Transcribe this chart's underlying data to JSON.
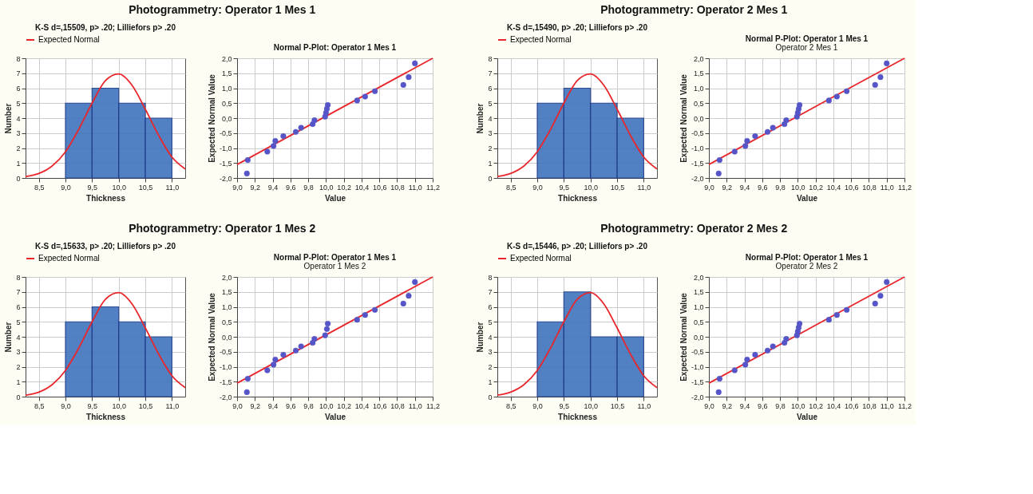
{
  "chart_data": [
    {
      "type": "histogram",
      "title": "Photogrammetry: Operator 1 Mes 1",
      "subtitle": "K-S d=,15509, p> .20; Lilliefors p> .20",
      "xlabel": "Thickness",
      "ylabel": "Number",
      "legend": "top",
      "grid": true,
      "xlim": [
        8.25,
        11.25
      ],
      "xticks": [
        {
          "value": 8.5,
          "label": "8,5"
        },
        {
          "value": 9.0,
          "label": "9,0"
        },
        {
          "value": 9.5,
          "label": "9,5"
        },
        {
          "value": 10.0,
          "label": "10,0"
        },
        {
          "value": 10.5,
          "label": "10,5"
        },
        {
          "value": 11.0,
          "label": "11,0"
        }
      ],
      "ylim": [
        0,
        8
      ],
      "yticks": [
        0,
        1,
        2,
        3,
        4,
        5,
        6,
        7,
        8
      ],
      "series": [
        {
          "type": "histogram",
          "color": "#3f74bd",
          "bins": [
            9.0,
            9.5,
            10.0,
            10.5,
            11.0
          ],
          "values": [
            5,
            6,
            5,
            4
          ]
        },
        {
          "type": "line",
          "name": "Expected Normal",
          "color": "#e8262b",
          "x": [
            8.25,
            8.5,
            8.75,
            9.0,
            9.25,
            9.5,
            9.75,
            10.0,
            10.25,
            10.5,
            10.75,
            11.0,
            11.25
          ],
          "values": [
            0.1,
            0.3,
            0.8,
            1.75,
            3.25,
            5.0,
            6.5,
            6.95,
            6.2,
            4.6,
            2.85,
            1.4,
            0.6
          ]
        }
      ]
    },
    {
      "type": "scatter",
      "title": "Normal P-Plot: Operator 1 Mes 1",
      "xlabel": "Value",
      "ylabel": "Expected Normal Value",
      "grid": true,
      "xlim": [
        9.0,
        11.2
      ],
      "xticks": [
        {
          "value": 9.0,
          "label": "9,0"
        },
        {
          "value": 9.2,
          "label": "9,2"
        },
        {
          "value": 9.4,
          "label": "9,4"
        },
        {
          "value": 9.6,
          "label": "9,6"
        },
        {
          "value": 9.8,
          "label": "9,8"
        },
        {
          "value": 10.0,
          "label": "10,0"
        },
        {
          "value": 10.2,
          "label": "10,2"
        },
        {
          "value": 10.4,
          "label": "10,4"
        },
        {
          "value": 10.6,
          "label": "10,6"
        },
        {
          "value": 10.8,
          "label": "10,8"
        },
        {
          "value": 11.0,
          "label": "11,0"
        },
        {
          "value": 11.2,
          "label": "11,2"
        }
      ],
      "ylim": [
        -2.0,
        2.0
      ],
      "yticks": [
        {
          "value": -2.0,
          "label": "-2,0"
        },
        {
          "value": -1.5,
          "label": "-1,5"
        },
        {
          "value": -1.0,
          "label": "-1,0"
        },
        {
          "value": -0.5,
          "label": "-0,5"
        },
        {
          "value": 0.0,
          "label": "0,0"
        },
        {
          "value": 0.5,
          "label": "0,5"
        },
        {
          "value": 1.0,
          "label": "1,0"
        },
        {
          "value": 1.5,
          "label": "1,5"
        },
        {
          "value": 2.0,
          "label": "2,0"
        }
      ],
      "series": [
        {
          "type": "line",
          "color": "#e8262b",
          "x": [
            9.0,
            11.2
          ],
          "values": [
            -1.55,
            2.0
          ]
        },
        {
          "type": "scatter",
          "marker": "circle",
          "color": "#5555c8",
          "x": [
            9.11,
            9.12,
            9.34,
            9.41,
            9.43,
            9.52,
            9.66,
            9.72,
            9.85,
            9.87,
            9.99,
            10.0,
            10.01,
            10.02,
            10.35,
            10.44,
            10.55,
            10.87,
            10.93,
            11.0
          ],
          "values": [
            -1.85,
            -1.4,
            -1.12,
            -0.93,
            -0.76,
            -0.6,
            -0.46,
            -0.32,
            -0.2,
            -0.07,
            0.05,
            0.18,
            0.31,
            0.44,
            0.59,
            0.72,
            0.9,
            1.11,
            1.37,
            1.83
          ]
        }
      ]
    },
    {
      "type": "histogram",
      "title": "Photogrammetry: Operator 2 Mes 1",
      "subtitle": "K-S d=,15490, p> .20; Lilliefors p> .20",
      "xlabel": "Thickness",
      "ylabel": "Number",
      "legend": "top",
      "grid": true,
      "xlim": [
        8.25,
        11.25
      ],
      "xticks": [
        {
          "value": 8.5,
          "label": "8,5"
        },
        {
          "value": 9.0,
          "label": "9,0"
        },
        {
          "value": 9.5,
          "label": "9,5"
        },
        {
          "value": 10.0,
          "label": "10,0"
        },
        {
          "value": 10.5,
          "label": "10,5"
        },
        {
          "value": 11.0,
          "label": "11,0"
        }
      ],
      "ylim": [
        0,
        8
      ],
      "yticks": [
        0,
        1,
        2,
        3,
        4,
        5,
        6,
        7,
        8
      ],
      "series": [
        {
          "type": "histogram",
          "color": "#3f74bd",
          "bins": [
            9.0,
            9.5,
            10.0,
            10.5,
            11.0
          ],
          "values": [
            5,
            6,
            5,
            4
          ]
        },
        {
          "type": "line",
          "name": "Expected Normal",
          "color": "#e8262b",
          "x": [
            8.25,
            8.5,
            8.75,
            9.0,
            9.25,
            9.5,
            9.75,
            10.0,
            10.25,
            10.5,
            10.75,
            11.0,
            11.25
          ],
          "values": [
            0.1,
            0.3,
            0.8,
            1.75,
            3.25,
            5.0,
            6.5,
            6.95,
            6.2,
            4.6,
            2.85,
            1.4,
            0.6
          ]
        }
      ]
    },
    {
      "type": "scatter",
      "title": "Normal P-Plot: Operator 1 Mes 1",
      "subtitle": "Operator 2 Mes 1",
      "xlabel": "Value",
      "ylabel": "Expected Normal Value",
      "grid": true,
      "xlim": [
        9.0,
        11.2
      ],
      "xticks": [
        {
          "value": 9.0,
          "label": "9,0"
        },
        {
          "value": 9.2,
          "label": "9,2"
        },
        {
          "value": 9.4,
          "label": "9,4"
        },
        {
          "value": 9.6,
          "label": "9,6"
        },
        {
          "value": 9.8,
          "label": "9,8"
        },
        {
          "value": 10.0,
          "label": "10,0"
        },
        {
          "value": 10.2,
          "label": "10,2"
        },
        {
          "value": 10.4,
          "label": "10,4"
        },
        {
          "value": 10.6,
          "label": "10,6"
        },
        {
          "value": 10.8,
          "label": "10,8"
        },
        {
          "value": 11.0,
          "label": "11,0"
        },
        {
          "value": 11.2,
          "label": "11,2"
        }
      ],
      "ylim": [
        -2.0,
        2.0
      ],
      "yticks": [
        {
          "value": -2.0,
          "label": "-2,0"
        },
        {
          "value": -1.5,
          "label": "-1,5"
        },
        {
          "value": -1.0,
          "label": "-1,0"
        },
        {
          "value": -0.5,
          "label": "-0,5"
        },
        {
          "value": 0.0,
          "label": "0,0"
        },
        {
          "value": 0.5,
          "label": "0,5"
        },
        {
          "value": 1.0,
          "label": "1,0"
        },
        {
          "value": 1.5,
          "label": "1,5"
        },
        {
          "value": 2.0,
          "label": "2,0"
        }
      ],
      "series": [
        {
          "type": "line",
          "color": "#e8262b",
          "x": [
            9.0,
            11.2
          ],
          "values": [
            -1.55,
            2.0
          ]
        },
        {
          "type": "scatter",
          "marker": "circle",
          "color": "#5555c8",
          "x": [
            9.11,
            9.12,
            9.29,
            9.41,
            9.43,
            9.52,
            9.66,
            9.72,
            9.85,
            9.87,
            9.99,
            10.0,
            10.01,
            10.02,
            10.35,
            10.44,
            10.55,
            10.87,
            10.93,
            11.0
          ],
          "values": [
            -1.85,
            -1.4,
            -1.12,
            -0.93,
            -0.76,
            -0.6,
            -0.46,
            -0.32,
            -0.2,
            -0.07,
            0.05,
            0.18,
            0.31,
            0.44,
            0.59,
            0.72,
            0.9,
            1.11,
            1.37,
            1.83
          ]
        }
      ]
    },
    {
      "type": "histogram",
      "title": "Photogrammetry: Operator 1 Mes 2",
      "subtitle": "K-S d=,15633, p> .20; Lilliefors p> .20",
      "xlabel": "Thickness",
      "ylabel": "Number",
      "legend": "top",
      "grid": true,
      "xlim": [
        8.25,
        11.25
      ],
      "xticks": [
        {
          "value": 8.5,
          "label": "8,5"
        },
        {
          "value": 9.0,
          "label": "9,0"
        },
        {
          "value": 9.5,
          "label": "9,5"
        },
        {
          "value": 10.0,
          "label": "10,0"
        },
        {
          "value": 10.5,
          "label": "10,5"
        },
        {
          "value": 11.0,
          "label": "11,0"
        }
      ],
      "ylim": [
        0,
        8
      ],
      "yticks": [
        0,
        1,
        2,
        3,
        4,
        5,
        6,
        7,
        8
      ],
      "series": [
        {
          "type": "histogram",
          "color": "#3f74bd",
          "bins": [
            9.0,
            9.5,
            10.0,
            10.5,
            11.0
          ],
          "values": [
            5,
            6,
            5,
            4
          ]
        },
        {
          "type": "line",
          "name": "Expected Normal",
          "color": "#e8262b",
          "x": [
            8.25,
            8.5,
            8.75,
            9.0,
            9.25,
            9.5,
            9.75,
            10.0,
            10.25,
            10.5,
            10.75,
            11.0,
            11.25
          ],
          "values": [
            0.1,
            0.3,
            0.8,
            1.75,
            3.25,
            5.0,
            6.5,
            6.95,
            6.2,
            4.6,
            2.85,
            1.4,
            0.6
          ]
        }
      ]
    },
    {
      "type": "scatter",
      "title": "Normal P-Plot: Operator 1 Mes 1",
      "subtitle": "Operator 1 Mes 2",
      "xlabel": "Value",
      "ylabel": "Expected Normal Value",
      "grid": true,
      "xlim": [
        9.0,
        11.2
      ],
      "xticks": [
        {
          "value": 9.0,
          "label": "9,0"
        },
        {
          "value": 9.2,
          "label": "9,2"
        },
        {
          "value": 9.4,
          "label": "9,4"
        },
        {
          "value": 9.6,
          "label": "9,6"
        },
        {
          "value": 9.8,
          "label": "9,8"
        },
        {
          "value": 10.0,
          "label": "10,0"
        },
        {
          "value": 10.2,
          "label": "10,2"
        },
        {
          "value": 10.4,
          "label": "10,4"
        },
        {
          "value": 10.6,
          "label": "10,6"
        },
        {
          "value": 10.8,
          "label": "10,8"
        },
        {
          "value": 11.0,
          "label": "11,0"
        },
        {
          "value": 11.2,
          "label": "11,2"
        }
      ],
      "ylim": [
        -2.0,
        2.0
      ],
      "yticks": [
        {
          "value": -2.0,
          "label": "-2,0"
        },
        {
          "value": -1.5,
          "label": "-1,5"
        },
        {
          "value": -1.0,
          "label": "-1,0"
        },
        {
          "value": -0.5,
          "label": "-0,5"
        },
        {
          "value": 0.0,
          "label": "0,0"
        },
        {
          "value": 0.5,
          "label": "0,5"
        },
        {
          "value": 1.0,
          "label": "1,0"
        },
        {
          "value": 1.5,
          "label": "1,5"
        },
        {
          "value": 2.0,
          "label": "2,0"
        }
      ],
      "series": [
        {
          "type": "line",
          "color": "#e8262b",
          "x": [
            9.0,
            11.2
          ],
          "values": [
            -1.55,
            2.0
          ]
        },
        {
          "type": "scatter",
          "marker": "circle",
          "color": "#5555c8",
          "x": [
            9.11,
            9.12,
            9.34,
            9.41,
            9.43,
            9.52,
            9.66,
            9.72,
            9.85,
            9.87,
            9.99,
            10.0,
            10.01,
            10.02,
            10.35,
            10.44,
            10.55,
            10.87,
            10.93,
            11.0
          ],
          "values": [
            -1.85,
            -1.4,
            -1.12,
            -0.93,
            -0.76,
            -0.6,
            -0.46,
            -0.32,
            -0.2,
            -0.07,
            0.05,
            null,
            0.26,
            0.44,
            0.57,
            0.73,
            0.9,
            1.11,
            1.37,
            1.83
          ]
        }
      ]
    },
    {
      "type": "histogram",
      "title": "Photogrammetry: Operator 2 Mes 2",
      "subtitle": "K-S d=,15446, p> .20; Lilliefors p> .20",
      "xlabel": "Thickness",
      "ylabel": "Number",
      "legend": "top",
      "grid": true,
      "xlim": [
        8.25,
        11.25
      ],
      "xticks": [
        {
          "value": 8.5,
          "label": "8,5"
        },
        {
          "value": 9.0,
          "label": "9,0"
        },
        {
          "value": 9.5,
          "label": "9,5"
        },
        {
          "value": 10.0,
          "label": "10,0"
        },
        {
          "value": 10.5,
          "label": "10,5"
        },
        {
          "value": 11.0,
          "label": "11,0"
        }
      ],
      "ylim": [
        0,
        8
      ],
      "yticks": [
        0,
        1,
        2,
        3,
        4,
        5,
        6,
        7,
        8
      ],
      "series": [
        {
          "type": "histogram",
          "color": "#3f74bd",
          "bins": [
            9.0,
            9.5,
            10.0,
            10.5,
            11.0
          ],
          "values": [
            5,
            7,
            4,
            4
          ]
        },
        {
          "type": "line",
          "name": "Expected Normal",
          "color": "#e8262b",
          "x": [
            8.25,
            8.5,
            8.75,
            9.0,
            9.25,
            9.5,
            9.75,
            10.0,
            10.25,
            10.5,
            10.75,
            11.0,
            11.25
          ],
          "values": [
            0.1,
            0.3,
            0.8,
            1.75,
            3.25,
            5.0,
            6.5,
            6.95,
            6.2,
            4.6,
            2.85,
            1.4,
            0.6
          ]
        }
      ]
    },
    {
      "type": "scatter",
      "title": "Normal P-Plot: Operator 1 Mes 1",
      "subtitle": "Operator 2 Mes 2",
      "xlabel": "Value",
      "ylabel": "Expected Normal Value",
      "grid": true,
      "xlim": [
        9.0,
        11.2
      ],
      "xticks": [
        {
          "value": 9.0,
          "label": "9,0"
        },
        {
          "value": 9.2,
          "label": "9,2"
        },
        {
          "value": 9.4,
          "label": "9,4"
        },
        {
          "value": 9.6,
          "label": "9,6"
        },
        {
          "value": 9.8,
          "label": "9,8"
        },
        {
          "value": 10.0,
          "label": "10,0"
        },
        {
          "value": 10.2,
          "label": "10,2"
        },
        {
          "value": 10.4,
          "label": "10,4"
        },
        {
          "value": 10.6,
          "label": "10,6"
        },
        {
          "value": 10.8,
          "label": "10,8"
        },
        {
          "value": 11.0,
          "label": "11,0"
        },
        {
          "value": 11.2,
          "label": "11,2"
        }
      ],
      "ylim": [
        -2.0,
        2.0
      ],
      "yticks": [
        {
          "value": -2.0,
          "label": "-2,0"
        },
        {
          "value": -1.5,
          "label": "-1,5"
        },
        {
          "value": -1.0,
          "label": "-1,0"
        },
        {
          "value": -0.5,
          "label": "-0,5"
        },
        {
          "value": 0.0,
          "label": "0,0"
        },
        {
          "value": 0.5,
          "label": "0,5"
        },
        {
          "value": 1.0,
          "label": "1,0"
        },
        {
          "value": 1.5,
          "label": "1,5"
        },
        {
          "value": 2.0,
          "label": "2,0"
        }
      ],
      "series": [
        {
          "type": "line",
          "color": "#e8262b",
          "x": [
            9.0,
            11.2
          ],
          "values": [
            -1.55,
            2.0
          ]
        },
        {
          "type": "scatter",
          "marker": "circle",
          "color": "#5555c8",
          "x": [
            9.11,
            9.12,
            9.29,
            9.41,
            9.43,
            9.52,
            9.66,
            9.72,
            9.85,
            9.87,
            9.99,
            10.0,
            10.01,
            10.02,
            10.35,
            10.44,
            10.55,
            10.87,
            10.93,
            11.0
          ],
          "values": [
            -1.85,
            -1.4,
            -1.12,
            -0.93,
            -0.76,
            -0.6,
            -0.46,
            -0.32,
            -0.2,
            -0.07,
            0.05,
            0.18,
            0.31,
            0.44,
            0.57,
            0.73,
            0.9,
            1.11,
            1.37,
            1.83
          ]
        }
      ]
    }
  ]
}
